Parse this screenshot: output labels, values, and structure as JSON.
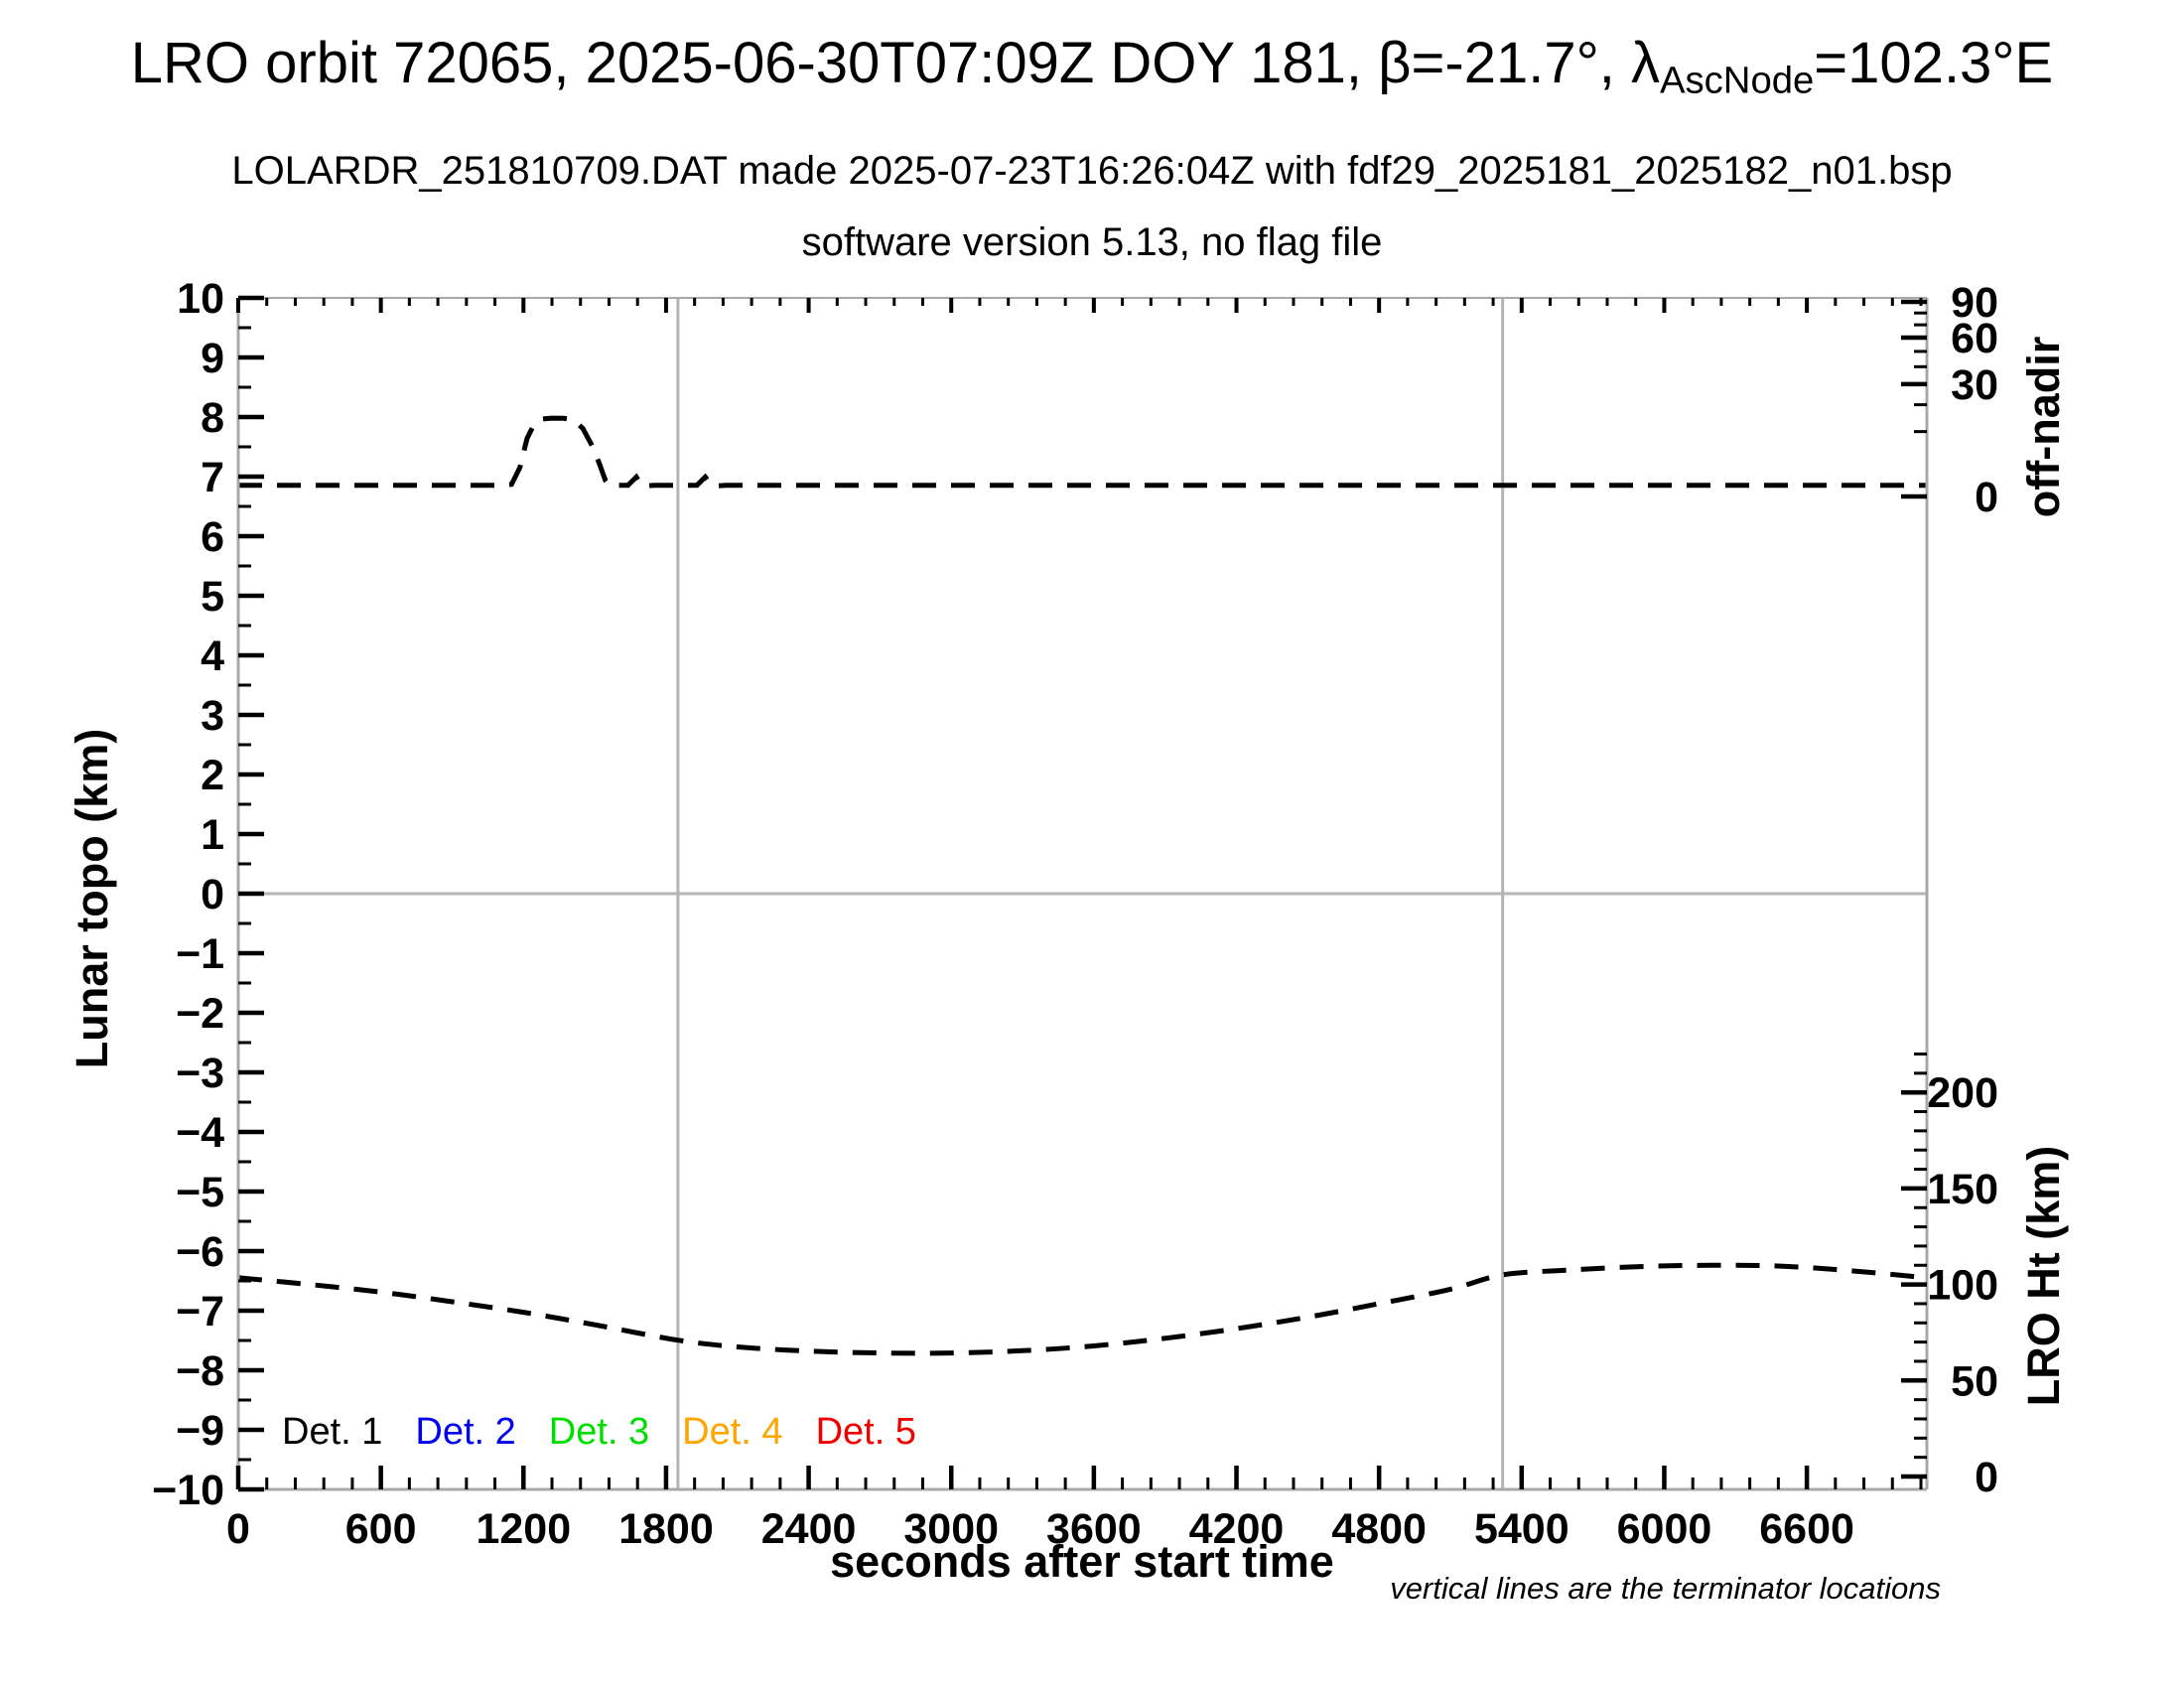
{
  "header": {
    "title_prefix": "LRO orbit 72065, 2025-06-30T07:09Z DOY 181, β=-21.7°, ",
    "title_lambda": "λ",
    "title_lambda_sub": "AscNode",
    "title_tail": "=102.3°E",
    "subtitle1": "LOLARDR_251810709.DAT made 2025-07-23T16:26:04Z with fdf29_2025181_2025182_n01.bsp",
    "subtitle2": "software version 5.13, no flag file"
  },
  "footnote": "vertical lines are the terminator locations",
  "legend": {
    "items": [
      {
        "label": "Det. 1",
        "color": "#000000"
      },
      {
        "label": "Det. 2",
        "color": "#0000ee"
      },
      {
        "label": "Det. 3",
        "color": "#00dd00"
      },
      {
        "label": "Det. 4",
        "color": "#ffa500"
      },
      {
        "label": "Det. 5",
        "color": "#ee0000"
      }
    ]
  },
  "chart_data": {
    "type": "line",
    "title": "LRO orbit 72065, 2025-06-30T07:09Z DOY 181, β=-21.7°, λAscNode=102.3°E",
    "x_axis": {
      "label": "seconds after start time",
      "major_ticks": [
        0,
        600,
        1200,
        1800,
        2400,
        3000,
        3600,
        4200,
        4800,
        5400,
        6000,
        6600
      ],
      "minor_step_s": 120,
      "range": [
        0,
        7105
      ]
    },
    "left_y_axis": {
      "label": "Lunar topo (km)",
      "major_ticks": [
        -10,
        -9,
        -8,
        -7,
        -6,
        -5,
        -4,
        -3,
        -2,
        -1,
        0,
        1,
        2,
        3,
        4,
        5,
        6,
        7,
        8,
        9,
        10
      ],
      "minor_step": 0.5,
      "range": [
        -10,
        10
      ]
    },
    "right_y_axis_top": {
      "label": "off-nadir",
      "major_ticks": [
        0,
        30,
        60,
        90
      ],
      "minor_ticks": [
        10,
        20,
        40,
        50,
        70,
        80
      ],
      "scale": "sqrt",
      "range": [
        0,
        90
      ],
      "units": "degrees"
    },
    "right_y_axis_bottom": {
      "label": "LRO Ht (km)",
      "major_ticks": [
        0,
        50,
        100,
        150,
        200
      ],
      "minor_step_km": 10,
      "range": [
        0,
        220
      ]
    },
    "zero_topo_line": 0,
    "terminator_lines_s": [
      1850,
      5320
    ],
    "grid_color": "#b4b4b4",
    "series": [
      {
        "name": "off-nadir angle",
        "axis": "off_nadir",
        "color": "#000000",
        "style": "dashed",
        "smooth": false,
        "points": [
          [
            0,
            0.3
          ],
          [
            300,
            0.3
          ],
          [
            600,
            0.3
          ],
          [
            900,
            0.3
          ],
          [
            1100,
            0.3
          ],
          [
            1150,
            0.35
          ],
          [
            1185,
            2
          ],
          [
            1215,
            8
          ],
          [
            1245,
            12.5
          ],
          [
            1280,
            14.3
          ],
          [
            1320,
            14.6
          ],
          [
            1370,
            14.5
          ],
          [
            1410,
            14.0
          ],
          [
            1450,
            11
          ],
          [
            1490,
            6
          ],
          [
            1520,
            2.5
          ],
          [
            1545,
            0.6
          ],
          [
            1560,
            0.3
          ],
          [
            1640,
            0.3
          ],
          [
            1675,
            0.9
          ],
          [
            1700,
            0.25
          ],
          [
            1750,
            0.3
          ],
          [
            1930,
            0.3
          ],
          [
            1965,
            0.9
          ],
          [
            1995,
            0.25
          ],
          [
            2050,
            0.3
          ],
          [
            2400,
            0.3
          ],
          [
            3000,
            0.3
          ],
          [
            3600,
            0.3
          ],
          [
            4200,
            0.3
          ],
          [
            4800,
            0.3
          ],
          [
            5400,
            0.3
          ],
          [
            6000,
            0.3
          ],
          [
            6600,
            0.3
          ],
          [
            7105,
            0.3
          ]
        ]
      },
      {
        "name": "LRO height",
        "axis": "lro_ht",
        "color": "#000000",
        "style": "dashed",
        "smooth": true,
        "points": [
          [
            0,
            103.5
          ],
          [
            300,
            100
          ],
          [
            600,
            96
          ],
          [
            900,
            91
          ],
          [
            1200,
            85.5
          ],
          [
            1500,
            79
          ],
          [
            1850,
            71
          ],
          [
            2100,
            67.5
          ],
          [
            2400,
            65.3
          ],
          [
            2700,
            64.3
          ],
          [
            3000,
            64.3
          ],
          [
            3300,
            65.5
          ],
          [
            3600,
            68
          ],
          [
            3900,
            72
          ],
          [
            4200,
            77
          ],
          [
            4500,
            83
          ],
          [
            4800,
            90
          ],
          [
            5100,
            97.5
          ],
          [
            5320,
            105
          ],
          [
            5600,
            107.5
          ],
          [
            5900,
            109.3
          ],
          [
            6200,
            110
          ],
          [
            6500,
            109.5
          ],
          [
            6800,
            107
          ],
          [
            7105,
            103.5
          ]
        ]
      }
    ],
    "legend_entries": [
      "Det. 1",
      "Det. 2",
      "Det. 3",
      "Det. 4",
      "Det. 5"
    ],
    "annotations": [
      "vertical lines are the terminator locations"
    ]
  }
}
